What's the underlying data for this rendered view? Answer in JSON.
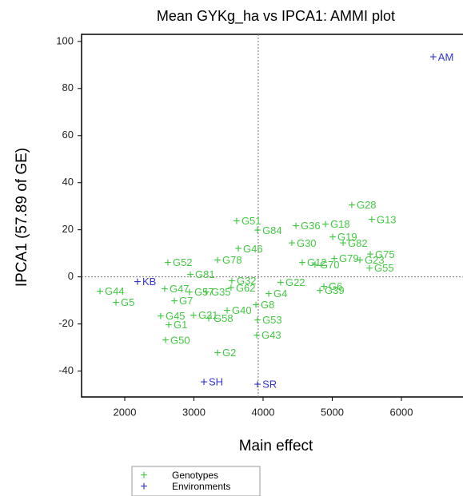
{
  "chart_data": {
    "type": "scatter",
    "title": "Mean GYKg_ha vs IPCA1: AMMI plot",
    "xlabel": "Main effect",
    "ylabel": "IPCA1 (57.89 of GE)",
    "xlim": [
      1376,
      6890
    ],
    "ylim": [
      -51,
      103
    ],
    "xticks": [
      2000,
      3000,
      4000,
      5000,
      6000
    ],
    "yticks": [
      -40,
      -20,
      0,
      20,
      40,
      60,
      80,
      100
    ],
    "reference_lines": {
      "x": 3930,
      "y": 0
    },
    "series": [
      {
        "name": "Genotypes",
        "color": "#44c844",
        "labels": [
          "G28",
          "G13",
          "G51",
          "G84",
          "G36",
          "G18",
          "G19",
          "G82",
          "G75",
          "G55",
          "G52",
          "G78",
          "G46",
          "G44",
          "G5",
          "G47",
          "G7",
          "G57",
          "G35",
          "G45",
          "G1",
          "G50",
          "G2",
          "G53",
          "G43",
          "G8",
          "G4",
          "G22",
          "G6",
          "G39",
          "G23",
          "G79",
          "G70",
          "G58",
          "G31",
          "G40",
          "G81",
          "G32",
          "G12",
          "G30",
          "G62"
        ],
        "x": [
          5283,
          5572,
          3618,
          3920,
          4474,
          4902,
          5006,
          5156,
          5549,
          5538,
          2624,
          3341,
          3642,
          1642,
          1873,
          2578,
          2717,
          2936,
          3179,
          2520,
          2636,
          2590,
          3341,
          3920,
          3908,
          3896,
          4081,
          4254,
          4879,
          4821,
          5399,
          5029,
          4751,
          3214,
          2994,
          3480,
          2948,
          3549,
          4566,
          4416,
          3537
        ],
        "y": [
          30.2,
          24,
          23.4,
          19.4,
          21.4,
          22,
          16.6,
          14,
          9.2,
          3.4,
          5.8,
          6.8,
          11.6,
          -6.5,
          -11.2,
          -5.4,
          -10.5,
          -6.8,
          -6.8,
          -17,
          -20.7,
          -27.2,
          -32.6,
          -18.7,
          -25.1,
          -12.2,
          -7.5,
          -2.7,
          -4.4,
          -6.1,
          6.8,
          7.5,
          4.8,
          -18,
          -16.6,
          -14.6,
          0.7,
          -2,
          5.8,
          14,
          -5
        ]
      },
      {
        "name": "Environments",
        "color": "#3333cc",
        "labels": [
          "AM",
          "KB",
          "SH",
          "SR"
        ],
        "x": [
          6460,
          2185,
          3145,
          3920
        ],
        "y": [
          93,
          -2.4,
          -45,
          -46
        ]
      }
    ]
  }
}
